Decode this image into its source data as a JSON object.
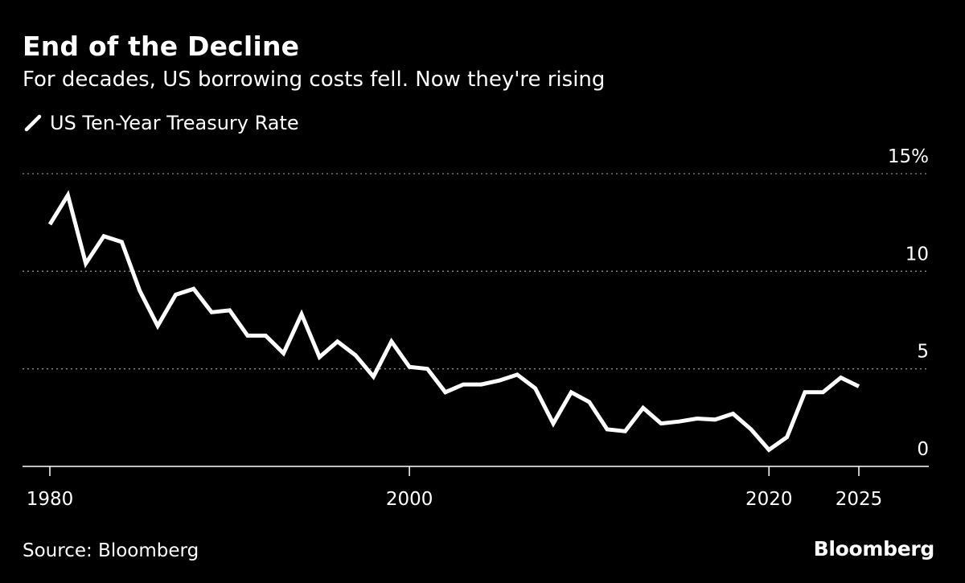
{
  "colors": {
    "background": "#000000",
    "line": "#ffffff",
    "gridline": "#8a8a8a",
    "text": "#ffffff"
  },
  "source_text": "Source: Bloomberg",
  "brand": "Bloomberg",
  "legend_icon": "slash-line-icon",
  "chart_data": {
    "type": "line",
    "title": "End of the Decline",
    "subtitle": "For decades, US borrowing costs fell. Now they're rising",
    "xlabel": "",
    "ylabel": "",
    "ylim": [
      0,
      15
    ],
    "xlim": [
      1980,
      2027.2
    ],
    "y_ticks": [
      {
        "value": 15,
        "label": "15%"
      },
      {
        "value": 10,
        "label": "10"
      },
      {
        "value": 5,
        "label": "5"
      },
      {
        "value": 0,
        "label": "0"
      }
    ],
    "x_ticks": [
      {
        "value": 1980,
        "label": "1980"
      },
      {
        "value": 2000,
        "label": "2000"
      },
      {
        "value": 2020,
        "label": "2020"
      },
      {
        "value": 2025,
        "label": "2025"
      }
    ],
    "grid": true,
    "legend_position": "top-left",
    "series": [
      {
        "name": "US Ten-Year Treasury Rate",
        "x": [
          1980,
          1981,
          1982,
          1983,
          1984,
          1985,
          1986,
          1987,
          1988,
          1989,
          1990,
          1991,
          1992,
          1993,
          1994,
          1995,
          1996,
          1997,
          1998,
          1999,
          2000,
          2001,
          2002,
          2003,
          2004,
          2005,
          2006,
          2007,
          2008,
          2009,
          2010,
          2011,
          2012,
          2013,
          2014,
          2015,
          2016,
          2017,
          2018,
          2019,
          2020,
          2021,
          2022,
          2023,
          2024,
          2025
        ],
        "values": [
          12.4,
          13.9,
          10.4,
          11.8,
          11.5,
          9.0,
          7.2,
          8.8,
          9.1,
          7.9,
          8.0,
          6.7,
          6.7,
          5.8,
          7.8,
          5.6,
          6.4,
          5.7,
          4.6,
          6.4,
          5.1,
          5.0,
          3.8,
          4.2,
          4.2,
          4.4,
          4.7,
          4.0,
          2.2,
          3.8,
          3.3,
          1.9,
          1.8,
          3.0,
          2.2,
          2.3,
          2.45,
          2.4,
          2.7,
          1.9,
          0.85,
          1.5,
          3.8,
          3.8,
          4.55,
          4.1
        ]
      }
    ]
  }
}
